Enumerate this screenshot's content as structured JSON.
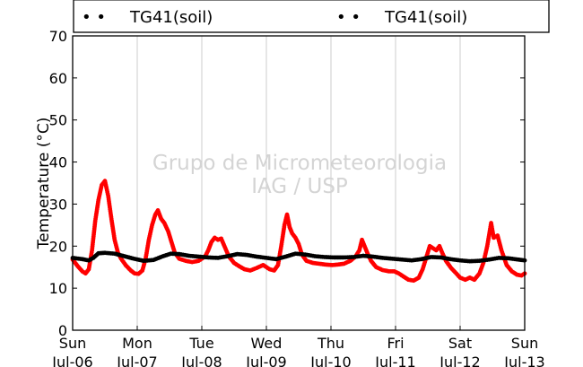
{
  "chart_data": {
    "type": "scatter",
    "ylabel": "Temperature (°C)",
    "ylim": [
      0,
      70
    ],
    "yticks": [
      0,
      10,
      20,
      30,
      40,
      50,
      60,
      70
    ],
    "xlim": [
      0,
      7
    ],
    "xticks": [
      {
        "x": 0,
        "label1": "Sun",
        "label2": "Jul-06"
      },
      {
        "x": 1,
        "label1": "Mon",
        "label2": "Jul-07"
      },
      {
        "x": 2,
        "label1": "Tue",
        "label2": "Jul-08"
      },
      {
        "x": 3,
        "label1": "Wed",
        "label2": "Jul-09"
      },
      {
        "x": 4,
        "label1": "Thu",
        "label2": "Jul-10"
      },
      {
        "x": 5,
        "label1": "Fri",
        "label2": "Jul-11"
      },
      {
        "x": 6,
        "label1": "Sat",
        "label2": "Jul-12"
      },
      {
        "x": 7,
        "label1": "Sun",
        "label2": "Jul-13"
      }
    ],
    "grid": "vertical",
    "legend": [
      {
        "label": "TG41(soil)",
        "marker": "• •",
        "color": "#000000"
      },
      {
        "label": "TG41(soil)",
        "marker": "• •",
        "color": "#000000"
      }
    ],
    "watermark": [
      "Grupo de Micrometeorologia",
      "IAG / USP"
    ],
    "series": [
      {
        "color": "#ff0000",
        "points": [
          [
            0.0,
            16.8
          ],
          [
            0.08,
            15.2
          ],
          [
            0.15,
            14.0
          ],
          [
            0.2,
            13.5
          ],
          [
            0.25,
            14.5
          ],
          [
            0.3,
            19.0
          ],
          [
            0.35,
            26.0
          ],
          [
            0.4,
            31.0
          ],
          [
            0.45,
            34.5
          ],
          [
            0.5,
            35.5
          ],
          [
            0.55,
            32.0
          ],
          [
            0.6,
            26.5
          ],
          [
            0.65,
            21.5
          ],
          [
            0.7,
            18.5
          ],
          [
            0.75,
            17.0
          ],
          [
            0.82,
            15.5
          ],
          [
            0.9,
            14.2
          ],
          [
            0.96,
            13.5
          ],
          [
            1.02,
            13.4
          ],
          [
            1.08,
            14.2
          ],
          [
            1.13,
            17.0
          ],
          [
            1.18,
            21.5
          ],
          [
            1.23,
            25.0
          ],
          [
            1.28,
            27.5
          ],
          [
            1.32,
            28.5
          ],
          [
            1.37,
            26.5
          ],
          [
            1.42,
            25.5
          ],
          [
            1.48,
            23.5
          ],
          [
            1.53,
            21.0
          ],
          [
            1.58,
            18.5
          ],
          [
            1.65,
            17.0
          ],
          [
            1.75,
            16.5
          ],
          [
            1.85,
            16.2
          ],
          [
            1.95,
            16.5
          ],
          [
            2.05,
            17.5
          ],
          [
            2.1,
            19.0
          ],
          [
            2.15,
            21.0
          ],
          [
            2.2,
            22.0
          ],
          [
            2.25,
            21.5
          ],
          [
            2.3,
            21.8
          ],
          [
            2.35,
            20.0
          ],
          [
            2.42,
            17.5
          ],
          [
            2.5,
            16.0
          ],
          [
            2.58,
            15.2
          ],
          [
            2.66,
            14.5
          ],
          [
            2.75,
            14.2
          ],
          [
            2.85,
            14.8
          ],
          [
            2.95,
            15.5
          ],
          [
            3.05,
            14.5
          ],
          [
            3.12,
            14.2
          ],
          [
            3.18,
            15.5
          ],
          [
            3.23,
            20.0
          ],
          [
            3.28,
            25.0
          ],
          [
            3.32,
            27.5
          ],
          [
            3.36,
            24.5
          ],
          [
            3.4,
            23.0
          ],
          [
            3.45,
            22.0
          ],
          [
            3.5,
            20.5
          ],
          [
            3.55,
            18.0
          ],
          [
            3.62,
            16.5
          ],
          [
            3.72,
            16.0
          ],
          [
            3.82,
            15.8
          ],
          [
            3.92,
            15.6
          ],
          [
            4.02,
            15.5
          ],
          [
            4.1,
            15.6
          ],
          [
            4.2,
            15.8
          ],
          [
            4.3,
            16.5
          ],
          [
            4.38,
            17.5
          ],
          [
            4.44,
            19.0
          ],
          [
            4.48,
            21.5
          ],
          [
            4.52,
            20.0
          ],
          [
            4.56,
            18.5
          ],
          [
            4.62,
            16.5
          ],
          [
            4.7,
            15.0
          ],
          [
            4.8,
            14.3
          ],
          [
            4.9,
            14.0
          ],
          [
            4.98,
            14.0
          ],
          [
            5.05,
            13.5
          ],
          [
            5.12,
            12.8
          ],
          [
            5.2,
            12.0
          ],
          [
            5.28,
            11.8
          ],
          [
            5.36,
            12.5
          ],
          [
            5.42,
            14.5
          ],
          [
            5.48,
            17.5
          ],
          [
            5.53,
            20.0
          ],
          [
            5.58,
            19.5
          ],
          [
            5.63,
            19.0
          ],
          [
            5.68,
            20.0
          ],
          [
            5.72,
            18.5
          ],
          [
            5.78,
            16.5
          ],
          [
            5.86,
            14.8
          ],
          [
            5.94,
            13.5
          ],
          [
            6.0,
            12.5
          ],
          [
            6.08,
            12.0
          ],
          [
            6.15,
            12.5
          ],
          [
            6.22,
            12.0
          ],
          [
            6.3,
            13.5
          ],
          [
            6.36,
            16.0
          ],
          [
            6.42,
            20.0
          ],
          [
            6.48,
            25.5
          ],
          [
            6.52,
            22.0
          ],
          [
            6.58,
            22.5
          ],
          [
            6.64,
            19.0
          ],
          [
            6.72,
            15.5
          ],
          [
            6.8,
            14.0
          ],
          [
            6.88,
            13.2
          ],
          [
            6.95,
            13.0
          ],
          [
            7.0,
            13.5
          ]
        ]
      },
      {
        "color": "#000000",
        "points": [
          [
            0.0,
            17.2
          ],
          [
            0.15,
            16.9
          ],
          [
            0.25,
            16.6
          ],
          [
            0.32,
            17.2
          ],
          [
            0.4,
            18.3
          ],
          [
            0.5,
            18.4
          ],
          [
            0.65,
            18.2
          ],
          [
            0.8,
            17.6
          ],
          [
            0.95,
            17.0
          ],
          [
            1.1,
            16.5
          ],
          [
            1.25,
            16.7
          ],
          [
            1.4,
            17.6
          ],
          [
            1.52,
            18.2
          ],
          [
            1.65,
            18.1
          ],
          [
            1.8,
            17.7
          ],
          [
            1.95,
            17.5
          ],
          [
            2.1,
            17.3
          ],
          [
            2.25,
            17.2
          ],
          [
            2.4,
            17.6
          ],
          [
            2.55,
            18.1
          ],
          [
            2.7,
            17.9
          ],
          [
            2.85,
            17.5
          ],
          [
            3.0,
            17.2
          ],
          [
            3.15,
            16.9
          ],
          [
            3.3,
            17.5
          ],
          [
            3.45,
            18.2
          ],
          [
            3.6,
            18.0
          ],
          [
            3.75,
            17.6
          ],
          [
            3.9,
            17.4
          ],
          [
            4.05,
            17.3
          ],
          [
            4.2,
            17.3
          ],
          [
            4.35,
            17.4
          ],
          [
            4.5,
            17.7
          ],
          [
            4.65,
            17.5
          ],
          [
            4.8,
            17.2
          ],
          [
            4.95,
            17.0
          ],
          [
            5.1,
            16.8
          ],
          [
            5.25,
            16.6
          ],
          [
            5.4,
            16.9
          ],
          [
            5.55,
            17.4
          ],
          [
            5.7,
            17.3
          ],
          [
            5.85,
            16.9
          ],
          [
            6.0,
            16.6
          ],
          [
            6.15,
            16.4
          ],
          [
            6.3,
            16.5
          ],
          [
            6.45,
            16.8
          ],
          [
            6.6,
            17.2
          ],
          [
            6.75,
            17.1
          ],
          [
            6.9,
            16.8
          ],
          [
            7.0,
            16.6
          ]
        ]
      }
    ]
  }
}
